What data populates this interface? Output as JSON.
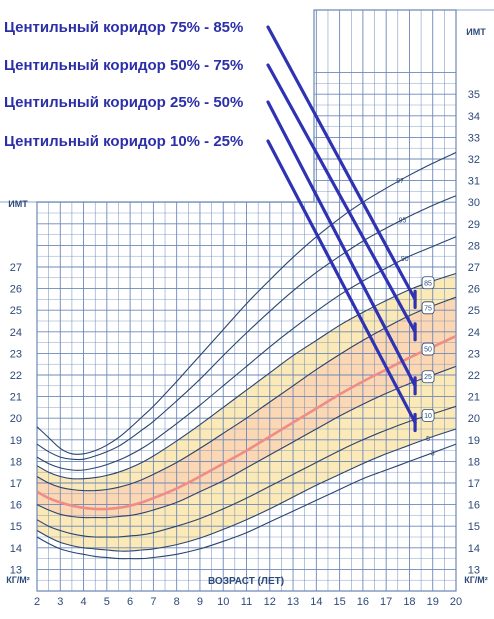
{
  "chart_data": {
    "type": "line",
    "x": [
      2,
      2.5,
      3,
      3.5,
      4,
      4.5,
      5,
      5.5,
      6,
      6.5,
      7,
      8,
      9,
      10,
      11,
      12,
      13,
      14,
      15,
      16,
      17,
      18,
      19,
      20
    ],
    "xlim": [
      2,
      20
    ],
    "ylim_left": [
      12,
      28
    ],
    "ylim_right": [
      12,
      36
    ],
    "y_unit": "КГ/М²",
    "x_unit": "КГ/М²",
    "xlabel": "ВОЗРАСТ (ЛЕТ)",
    "ylabel_left": "ИМТ",
    "ylabel_right": "ИМТ",
    "x_ticks": [
      "2",
      "3",
      "4",
      "5",
      "6",
      "7",
      "8",
      "9",
      "10",
      "11",
      "12",
      "13",
      "14",
      "15",
      "16",
      "17",
      "18",
      "19",
      "20"
    ],
    "y_ticks_left": [
      "13",
      "14",
      "15",
      "16",
      "17",
      "18",
      "19",
      "20",
      "21",
      "22",
      "23",
      "24",
      "25",
      "26",
      "27"
    ],
    "y_ticks_right": [
      "13",
      "14",
      "15",
      "16",
      "17",
      "18",
      "19",
      "20",
      "21",
      "22",
      "23",
      "24",
      "25",
      "26",
      "27",
      "28",
      "29",
      "30",
      "31",
      "32",
      "33",
      "34",
      "35"
    ],
    "series": [
      {
        "name": "3",
        "values": [
          14.5,
          14.2,
          13.95,
          13.8,
          13.7,
          13.6,
          13.55,
          13.5,
          13.5,
          13.5,
          13.55,
          13.7,
          13.95,
          14.3,
          14.7,
          15.2,
          15.7,
          16.2,
          16.7,
          17.2,
          17.6,
          18.0,
          18.4,
          18.8
        ]
      },
      {
        "name": "5",
        "values": [
          14.8,
          14.5,
          14.25,
          14.1,
          14.0,
          13.95,
          13.9,
          13.85,
          13.85,
          13.9,
          13.95,
          14.15,
          14.45,
          14.85,
          15.3,
          15.8,
          16.35,
          16.9,
          17.4,
          17.9,
          18.35,
          18.75,
          19.15,
          19.5
        ]
      },
      {
        "name": "10",
        "values": [
          15.3,
          15.0,
          14.8,
          14.65,
          14.55,
          14.5,
          14.5,
          14.5,
          14.55,
          14.6,
          14.7,
          15.0,
          15.35,
          15.8,
          16.3,
          16.85,
          17.4,
          17.95,
          18.5,
          19.0,
          19.45,
          19.85,
          20.2,
          20.55
        ]
      },
      {
        "name": "25",
        "values": [
          16.0,
          15.75,
          15.55,
          15.45,
          15.4,
          15.4,
          15.4,
          15.45,
          15.5,
          15.6,
          15.75,
          16.1,
          16.6,
          17.1,
          17.7,
          18.3,
          18.9,
          19.5,
          20.1,
          20.65,
          21.15,
          21.6,
          22.0,
          22.4
        ]
      },
      {
        "name": "50",
        "values": [
          16.6,
          16.3,
          16.1,
          15.95,
          15.85,
          15.8,
          15.8,
          15.85,
          15.95,
          16.1,
          16.3,
          16.75,
          17.3,
          17.9,
          18.5,
          19.15,
          19.8,
          20.45,
          21.1,
          21.7,
          22.25,
          22.8,
          23.3,
          23.8
        ]
      },
      {
        "name": "75",
        "values": [
          17.3,
          17.0,
          16.8,
          16.7,
          16.65,
          16.65,
          16.7,
          16.8,
          16.95,
          17.15,
          17.4,
          17.95,
          18.6,
          19.3,
          20.0,
          20.75,
          21.5,
          22.25,
          22.95,
          23.6,
          24.2,
          24.75,
          25.2,
          25.6
        ]
      },
      {
        "name": "85",
        "values": [
          17.8,
          17.5,
          17.3,
          17.2,
          17.2,
          17.25,
          17.35,
          17.5,
          17.7,
          17.95,
          18.25,
          18.95,
          19.7,
          20.5,
          21.3,
          22.1,
          22.9,
          23.6,
          24.3,
          24.9,
          25.45,
          25.95,
          26.35,
          26.7
        ]
      },
      {
        "name": "90",
        "values": [
          18.2,
          17.9,
          17.7,
          17.6,
          17.6,
          17.7,
          17.85,
          18.05,
          18.3,
          18.6,
          18.95,
          19.75,
          20.6,
          21.5,
          22.4,
          23.3,
          24.15,
          24.95,
          25.7,
          26.35,
          26.95,
          27.5,
          27.95,
          28.4
        ]
      },
      {
        "name": "95",
        "values": [
          18.8,
          18.45,
          18.2,
          18.1,
          18.1,
          18.25,
          18.45,
          18.7,
          19.05,
          19.45,
          19.85,
          20.8,
          21.8,
          22.9,
          23.95,
          24.95,
          25.9,
          26.75,
          27.5,
          28.2,
          28.8,
          29.35,
          29.85,
          30.3
        ]
      },
      {
        "name": "97",
        "values": [
          19.6,
          19.1,
          18.6,
          18.35,
          18.35,
          18.5,
          18.75,
          19.1,
          19.55,
          20.05,
          20.55,
          21.7,
          22.9,
          24.1,
          25.3,
          26.4,
          27.45,
          28.4,
          29.25,
          30.0,
          30.65,
          31.25,
          31.8,
          32.3
        ]
      }
    ],
    "bands": [
      {
        "from": "5",
        "to": "85",
        "color": "#fbe9b7"
      },
      {
        "from": "25",
        "to": "75",
        "color": "#fbd8b3"
      }
    ],
    "annotations": [
      {
        "text": "Центильный коридор 75% - 85%",
        "target_x": 18.5,
        "target_y": 25.5
      },
      {
        "text": "Центильный коридор 50% - 75%",
        "target_x": 18.5,
        "target_y": 24.0
      },
      {
        "text": "Центильный коридор 25% - 50%",
        "target_x": 18.5,
        "target_y": 21.5
      },
      {
        "text": "Центильный коридор 10% - 25%",
        "target_x": 18.5,
        "target_y": 19.8
      }
    ],
    "grid": true,
    "colors": {
      "grid": "#6d88b8",
      "curve": "#2a4470",
      "median": "#f08c86",
      "arrow": "#2f33b3",
      "band_outer": "#fbe9b7",
      "band_inner": "#fbd8b3"
    }
  }
}
